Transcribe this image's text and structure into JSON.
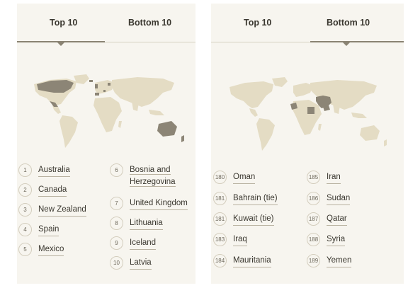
{
  "left_panel": {
    "tabs": [
      {
        "label": "Top 10",
        "active": true
      },
      {
        "label": "Bottom 10",
        "active": false
      }
    ],
    "items": [
      {
        "rank": "1",
        "name": "Australia"
      },
      {
        "rank": "2",
        "name": "Canada"
      },
      {
        "rank": "3",
        "name": "New Zealand"
      },
      {
        "rank": "4",
        "name": "Spain"
      },
      {
        "rank": "5",
        "name": "Mexico"
      },
      {
        "rank": "6",
        "name_line1": "Bosnia and",
        "name_line2": "Herzegovina"
      },
      {
        "rank": "7",
        "name": "United Kingdom"
      },
      {
        "rank": "8",
        "name": "Lithuania"
      },
      {
        "rank": "9",
        "name": "Iceland"
      },
      {
        "rank": "10",
        "name": "Latvia"
      }
    ]
  },
  "right_panel": {
    "tabs": [
      {
        "label": "Top 10",
        "active": false
      },
      {
        "label": "Bottom 10",
        "active": true
      }
    ],
    "items": [
      {
        "rank": "180",
        "name": "Oman"
      },
      {
        "rank": "181",
        "name": "Bahrain (tie)"
      },
      {
        "rank": "181",
        "name": "Kuwait (tie)"
      },
      {
        "rank": "183",
        "name": "Iraq"
      },
      {
        "rank": "184",
        "name": "Mauritania"
      },
      {
        "rank": "185",
        "name": "Iran"
      },
      {
        "rank": "186",
        "name": "Sudan"
      },
      {
        "rank": "187",
        "name": "Qatar"
      },
      {
        "rank": "188",
        "name": "Syria"
      },
      {
        "rank": "189",
        "name": "Yemen"
      }
    ]
  },
  "colors": {
    "panel_bg": "#f7f5ef",
    "land": "#e4dcc4",
    "highlight": "#8c8576",
    "text": "#3a372f"
  }
}
